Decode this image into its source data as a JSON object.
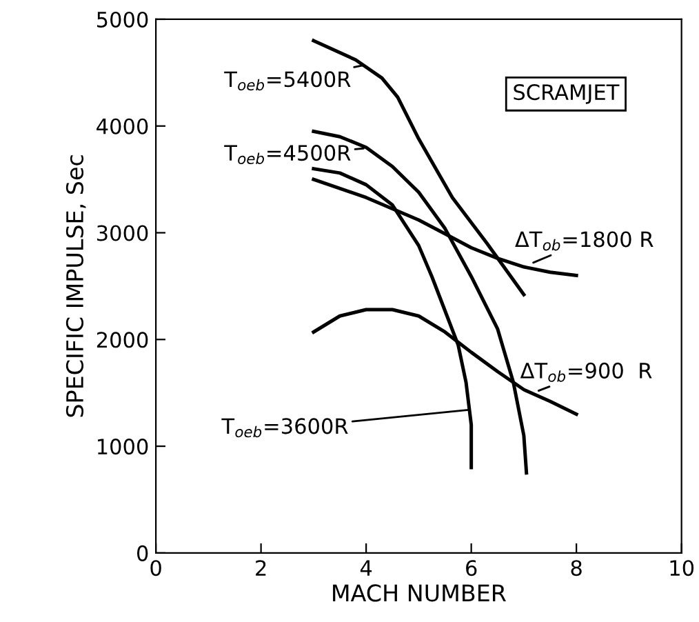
{
  "chart_data": {
    "type": "line",
    "xlabel": "MACH NUMBER",
    "ylabel": "SPECIFIC IMPULSE, Sec",
    "xlim": [
      0,
      10
    ],
    "ylim": [
      0,
      5000
    ],
    "xticks": [
      0,
      2,
      4,
      6,
      8,
      10
    ],
    "yticks": [
      0,
      1000,
      2000,
      3000,
      4000,
      5000
    ],
    "marker": "none",
    "line_style": "solid",
    "series": [
      {
        "color": "#000000",
        "x": [
          3,
          3.8,
          4.3,
          4.6,
          5.0,
          5.64,
          6.3,
          7.0
        ],
        "values": [
          4800,
          4620,
          4450,
          4270,
          3880,
          3330,
          2900,
          2420
        ]
      },
      {
        "color": "#000000",
        "x": [
          3,
          3.5,
          4,
          4.5,
          5,
          5.5,
          6,
          6.5,
          6.8,
          7.0,
          7.05
        ],
        "values": [
          3950,
          3900,
          3800,
          3620,
          3380,
          3040,
          2590,
          2100,
          1600,
          1100,
          750
        ]
      },
      {
        "color": "#000000",
        "x": [
          3,
          3.5,
          4,
          4.5,
          5,
          5.25,
          5.5,
          5.75,
          5.9,
          6.0,
          6.0
        ],
        "values": [
          3600,
          3560,
          3450,
          3260,
          2880,
          2590,
          2270,
          1950,
          1600,
          1200,
          800
        ]
      },
      {
        "color": "#000000",
        "x": [
          3,
          4,
          5,
          5.5,
          6,
          6.5,
          7,
          7.5,
          8
        ],
        "values": [
          3500,
          3330,
          3120,
          2990,
          2860,
          2760,
          2680,
          2630,
          2600
        ]
      },
      {
        "color": "#000000",
        "x": [
          3,
          3.5,
          4,
          4.5,
          5,
          5.5,
          6,
          6.5,
          7,
          7.5,
          8
        ],
        "values": [
          2070,
          2220,
          2280,
          2280,
          2220,
          2070,
          1880,
          1700,
          1530,
          1420,
          1300
        ]
      }
    ],
    "annotations": [
      {
        "text": "T$_{oeb}$=5400R",
        "x": 3.95,
        "y": 4570
      },
      {
        "text": "T$_{oeb}$=4500R",
        "x": 3.95,
        "y": 3790
      },
      {
        "text": "ΔT$_{ob}$=1800 R",
        "x": 7.18,
        "y": 2720
      },
      {
        "text": "ΔT$_{ob}$=900  R",
        "x": 7.28,
        "y": 1520
      },
      {
        "text": "T$_{oeb}$=3600R",
        "x": 5.95,
        "y": 1340
      },
      "SCRAMJET"
    ]
  }
}
